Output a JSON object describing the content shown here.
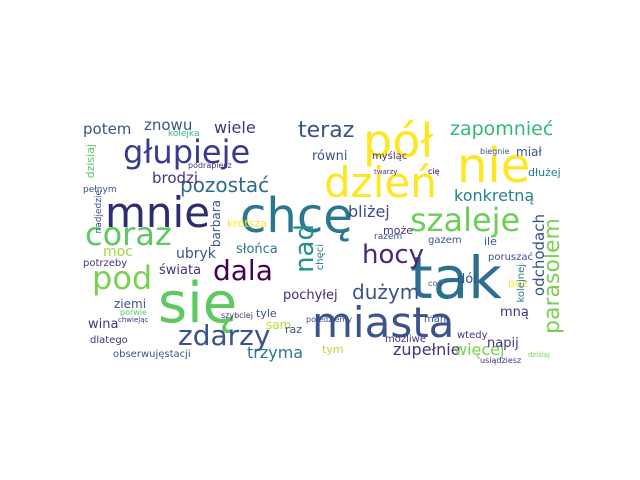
{
  "cloud": {
    "words": [
      {
        "text": "tak",
        "color": "#2d6f8e"
      },
      {
        "text": "się",
        "color": "#5ec962"
      },
      {
        "text": "chcę",
        "color": "#2a788e"
      },
      {
        "text": "miasta",
        "color": "#3b528b"
      },
      {
        "text": "nie",
        "color": "#fde725"
      },
      {
        "text": "pół",
        "color": "#fde725"
      },
      {
        "text": "dzień",
        "color": "#fde725"
      },
      {
        "text": "mnie",
        "color": "#2c2c6f"
      },
      {
        "text": "głupieje",
        "color": "#3b3b8e"
      },
      {
        "text": "coraz",
        "color": "#5ec962"
      },
      {
        "text": "szaleje",
        "color": "#6ece58"
      },
      {
        "text": "pod",
        "color": "#7ad151"
      },
      {
        "text": "zdarzy",
        "color": "#3b528b"
      },
      {
        "text": "hocy",
        "color": "#482878"
      },
      {
        "text": "dala",
        "color": "#440154"
      },
      {
        "text": "nad",
        "color": "#21918c"
      },
      {
        "text": "zapomnieć",
        "color": "#35b779"
      },
      {
        "text": "teraz",
        "color": "#3b528b"
      },
      {
        "text": "pozostać",
        "color": "#31688e"
      },
      {
        "text": "parasolem",
        "color": "#7ad151"
      },
      {
        "text": "konkretną",
        "color": "#26828e"
      },
      {
        "text": "dużym",
        "color": "#3b528b"
      },
      {
        "text": "bliżej",
        "color": "#3e4a89"
      },
      {
        "text": "odchodach",
        "color": "#3b528b"
      },
      {
        "text": "zupełnie",
        "color": "#46327e"
      },
      {
        "text": "więcej",
        "color": "#7ad151"
      },
      {
        "text": "trzyma",
        "color": "#2a788e"
      },
      {
        "text": "wiele",
        "color": "#46327e"
      },
      {
        "text": "potem",
        "color": "#3b528b"
      },
      {
        "text": "znowu",
        "color": "#3b528b"
      },
      {
        "text": "brodzi",
        "color": "#46327e"
      },
      {
        "text": "równi",
        "color": "#3b528b"
      },
      {
        "text": "moc",
        "color": "#a0da39"
      },
      {
        "text": "ubryk",
        "color": "#3b528b"
      },
      {
        "text": "świata",
        "color": "#46327e"
      },
      {
        "text": "pochyłej",
        "color": "#482878"
      },
      {
        "text": "słońca",
        "color": "#2a788e"
      },
      {
        "text": "barbara",
        "color": "#3b528b"
      },
      {
        "text": "krótsza",
        "color": "#fde725"
      },
      {
        "text": "dzisiaj",
        "color": "#5ec962"
      },
      {
        "text": "ziemi",
        "color": "#3b528b"
      },
      {
        "text": "wina",
        "color": "#46327e"
      },
      {
        "text": "dlatego",
        "color": "#46327e"
      },
      {
        "text": "sam",
        "color": "#b5de2b"
      },
      {
        "text": "raz",
        "color": "#3b528b"
      },
      {
        "text": "tym",
        "color": "#b5de2b"
      },
      {
        "text": "napij",
        "color": "#46327e"
      },
      {
        "text": "mną",
        "color": "#46327e"
      },
      {
        "text": "dół",
        "color": "#3b528b"
      },
      {
        "text": "może",
        "color": "#46327e"
      },
      {
        "text": "ile",
        "color": "#3b528b"
      },
      {
        "text": "bez",
        "color": "#fde725"
      },
      {
        "text": "kolejnej",
        "color": "#2a788e"
      },
      {
        "text": "poruszać",
        "color": "#3b528b"
      },
      {
        "text": "miał",
        "color": "#3b528b"
      },
      {
        "text": "dłużej",
        "color": "#2a788e"
      },
      {
        "text": "myśląc",
        "color": "#46327e"
      },
      {
        "text": "tyle",
        "color": "#3b528b"
      },
      {
        "text": "mam",
        "color": "#3b528b"
      },
      {
        "text": "wtedy",
        "color": "#46327e"
      },
      {
        "text": "możliwe",
        "color": "#46327e"
      },
      {
        "text": "chęci",
        "color": "#2a788e"
      },
      {
        "text": "gazem",
        "color": "#3b528b"
      },
      {
        "text": "potrzeby",
        "color": "#46327e"
      },
      {
        "text": "obserwujęstacji",
        "color": "#3b528b"
      },
      {
        "text": "pełnym",
        "color": "#3b528b"
      },
      {
        "text": "kolejka",
        "color": "#35b779"
      },
      {
        "text": "podrapiesz",
        "color": "#46327e"
      },
      {
        "text": "pojedziemy",
        "color": "#3b528b"
      },
      {
        "text": "szybciej",
        "color": "#46327e"
      },
      {
        "text": "chwiejąc",
        "color": "#46327e"
      },
      {
        "text": "porwie",
        "color": "#5ec962"
      },
      {
        "text": "nadjedzie",
        "color": "#3b528b"
      },
      {
        "text": "usiądziesz",
        "color": "#46327e"
      },
      {
        "text": "biegnie",
        "color": "#3b528b"
      },
      {
        "text": "cię",
        "color": "#440154"
      },
      {
        "text": "razem",
        "color": "#3b528b"
      },
      {
        "text": "twarzy",
        "color": "#46327e"
      },
      {
        "text": "coś",
        "color": "#3b528b"
      },
      {
        "text": "dzisiaj",
        "color": "#7ad151"
      }
    ]
  }
}
